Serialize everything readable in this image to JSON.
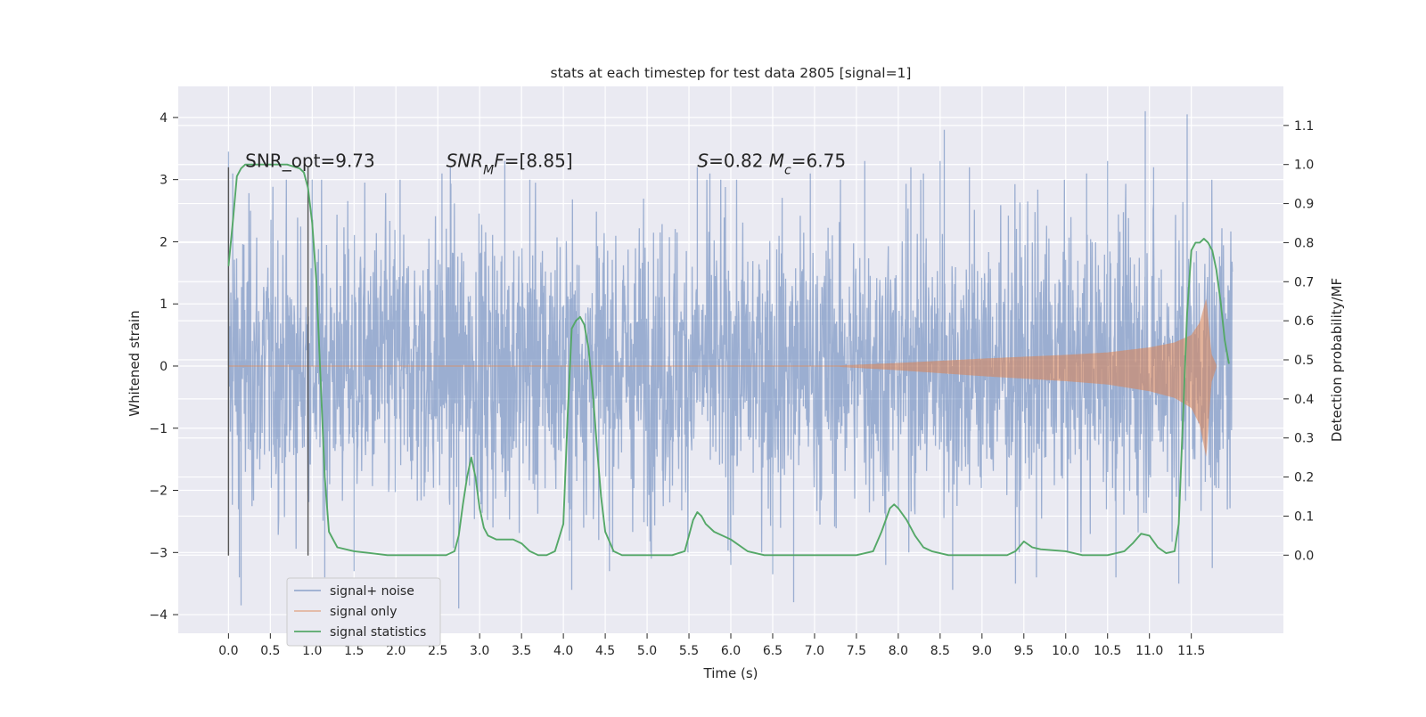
{
  "chart_data": {
    "type": "line",
    "title": "stats at each timestep for test data 2805 [signal=1]",
    "xlabel": "Time (s)",
    "ylabel_left": "Whitened strain",
    "ylabel_right": "Detection probability/MF",
    "xlim": [
      -0.6,
      12.6
    ],
    "ylim_left": [
      -4.3,
      4.5
    ],
    "ylim_right": [
      -0.2,
      1.2
    ],
    "x_ticks": [
      0.0,
      0.5,
      1.0,
      1.5,
      2.0,
      2.5,
      3.0,
      3.5,
      4.0,
      4.5,
      5.0,
      5.5,
      6.0,
      6.5,
      7.0,
      7.5,
      8.0,
      8.5,
      9.0,
      9.5,
      10.0,
      10.5,
      11.0,
      11.5
    ],
    "x_tick_labels": [
      "0.0",
      "0.5",
      "1.0",
      "1.5",
      "2.0",
      "2.5",
      "3.0",
      "3.5",
      "4.0",
      "4.5",
      "5.0",
      "5.5",
      "6.0",
      "6.5",
      "7.0",
      "7.5",
      "8.0",
      "8.5",
      "9.0",
      "9.5",
      "10.0",
      "10.5",
      "11.0",
      "11.5"
    ],
    "y_left_ticks": [
      -4,
      -3,
      -2,
      -1,
      0,
      1,
      2,
      3,
      4
    ],
    "y_left_tick_labels": [
      "−4",
      "−3",
      "−2",
      "−1",
      "0",
      "1",
      "2",
      "3",
      "4"
    ],
    "y_right_ticks": [
      0.0,
      0.1,
      0.2,
      0.3,
      0.4,
      0.5,
      0.6,
      0.7,
      0.8,
      0.9,
      1.0,
      1.1
    ],
    "y_right_tick_labels": [
      "0.0",
      "0.1",
      "0.2",
      "0.3",
      "0.4",
      "0.5",
      "0.6",
      "0.7",
      "0.8",
      "0.9",
      "1.0",
      "1.1"
    ],
    "grid": true,
    "legend_position": "lower-left",
    "series": [
      {
        "name": "signal+ noise",
        "axis": "left",
        "color": "#4c72b0",
        "opacity": 0.5,
        "x_range": [
          0.0,
          11.99
        ],
        "typical_amplitude": 1.35,
        "peaks": [
          {
            "x": 0.0,
            "y": 3.45
          },
          {
            "x": 0.05,
            "y": 3.1
          },
          {
            "x": 0.13,
            "y": -3.4
          },
          {
            "x": 0.15,
            "y": -3.85
          },
          {
            "x": 1.0,
            "y": 3.0
          },
          {
            "x": 1.15,
            "y": -3.4
          },
          {
            "x": 1.5,
            "y": -3.3
          },
          {
            "x": 2.05,
            "y": 3.0
          },
          {
            "x": 2.55,
            "y": 3.1
          },
          {
            "x": 2.65,
            "y": 3.2
          },
          {
            "x": 2.75,
            "y": -3.9
          },
          {
            "x": 3.3,
            "y": 3.3
          },
          {
            "x": 3.6,
            "y": 3.0
          },
          {
            "x": 4.1,
            "y": -3.6
          },
          {
            "x": 4.55,
            "y": -3.3
          },
          {
            "x": 5.05,
            "y": -3.1
          },
          {
            "x": 5.6,
            "y": 3.2
          },
          {
            "x": 5.75,
            "y": 3.1
          },
          {
            "x": 6.0,
            "y": -3.2
          },
          {
            "x": 6.5,
            "y": -3.35
          },
          {
            "x": 6.75,
            "y": -3.8
          },
          {
            "x": 6.95,
            "y": 3.1
          },
          {
            "x": 7.6,
            "y": 3.3
          },
          {
            "x": 7.85,
            "y": -3.2
          },
          {
            "x": 8.15,
            "y": 3.2
          },
          {
            "x": 8.3,
            "y": 3.1
          },
          {
            "x": 8.5,
            "y": 3.3
          },
          {
            "x": 8.55,
            "y": 3.8
          },
          {
            "x": 8.65,
            "y": -3.6
          },
          {
            "x": 8.85,
            "y": 3.2
          },
          {
            "x": 9.4,
            "y": -3.5
          },
          {
            "x": 9.65,
            "y": -3.4
          },
          {
            "x": 10.25,
            "y": 3.1
          },
          {
            "x": 10.5,
            "y": 3.3
          },
          {
            "x": 10.6,
            "y": -3.4
          },
          {
            "x": 10.95,
            "y": 4.1
          },
          {
            "x": 11.05,
            "y": 3.2
          },
          {
            "x": 11.35,
            "y": -3.5
          },
          {
            "x": 11.45,
            "y": 4.05
          },
          {
            "x": 11.75,
            "y": -3.25
          }
        ]
      },
      {
        "name": "signal only",
        "axis": "left",
        "color": "#dd8452",
        "opacity": 0.5,
        "chirp_start": 7.3,
        "merger_time": 11.7,
        "envelope": [
          {
            "x": 7.3,
            "y": 0.01
          },
          {
            "x": 8.0,
            "y": 0.05
          },
          {
            "x": 9.0,
            "y": 0.12
          },
          {
            "x": 10.0,
            "y": 0.18
          },
          {
            "x": 10.5,
            "y": 0.22
          },
          {
            "x": 11.0,
            "y": 0.3
          },
          {
            "x": 11.3,
            "y": 0.38
          },
          {
            "x": 11.5,
            "y": 0.5
          },
          {
            "x": 11.6,
            "y": 0.7
          },
          {
            "x": 11.68,
            "y": 1.1
          },
          {
            "x": 11.74,
            "y": 0.2
          },
          {
            "x": 11.8,
            "y": 0.02
          }
        ]
      },
      {
        "name": "signal statistics",
        "axis": "right",
        "color": "#55a868",
        "x": [
          0.0,
          0.05,
          0.1,
          0.15,
          0.2,
          0.3,
          0.5,
          0.7,
          0.85,
          0.9,
          0.95,
          1.0,
          1.05,
          1.1,
          1.15,
          1.2,
          1.3,
          1.5,
          1.7,
          1.9,
          2.1,
          2.3,
          2.5,
          2.6,
          2.7,
          2.75,
          2.8,
          2.85,
          2.9,
          2.95,
          3.0,
          3.05,
          3.1,
          3.2,
          3.4,
          3.5,
          3.6,
          3.7,
          3.8,
          3.9,
          4.0,
          4.05,
          4.1,
          4.15,
          4.2,
          4.25,
          4.3,
          4.35,
          4.4,
          4.45,
          4.5,
          4.6,
          4.7,
          5.0,
          5.3,
          5.45,
          5.5,
          5.55,
          5.6,
          5.65,
          5.7,
          5.8,
          6.0,
          6.2,
          6.4,
          6.6,
          7.0,
          7.5,
          7.7,
          7.8,
          7.9,
          7.95,
          8.0,
          8.1,
          8.2,
          8.3,
          8.4,
          8.6,
          9.0,
          9.3,
          9.4,
          9.5,
          9.6,
          9.7,
          10.0,
          10.2,
          10.5,
          10.7,
          10.8,
          10.9,
          11.0,
          11.1,
          11.2,
          11.3,
          11.35,
          11.4,
          11.45,
          11.5,
          11.55,
          11.6,
          11.65,
          11.7,
          11.75,
          11.8,
          11.85,
          11.9,
          11.95
        ],
        "y": [
          0.74,
          0.85,
          0.97,
          0.99,
          1.0,
          1.0,
          1.0,
          1.0,
          0.99,
          0.98,
          0.94,
          0.85,
          0.7,
          0.45,
          0.2,
          0.06,
          0.02,
          0.01,
          0.005,
          0.0,
          0.0,
          0.0,
          0.0,
          0.0,
          0.01,
          0.05,
          0.13,
          0.2,
          0.25,
          0.2,
          0.12,
          0.07,
          0.05,
          0.04,
          0.04,
          0.03,
          0.01,
          0.0,
          0.0,
          0.01,
          0.08,
          0.35,
          0.58,
          0.6,
          0.61,
          0.59,
          0.53,
          0.42,
          0.28,
          0.15,
          0.06,
          0.01,
          0.0,
          0.0,
          0.0,
          0.01,
          0.05,
          0.09,
          0.11,
          0.1,
          0.08,
          0.06,
          0.04,
          0.01,
          0.0,
          0.0,
          0.0,
          0.0,
          0.01,
          0.06,
          0.12,
          0.13,
          0.12,
          0.09,
          0.05,
          0.02,
          0.01,
          0.0,
          0.0,
          0.0,
          0.01,
          0.035,
          0.02,
          0.015,
          0.01,
          0.0,
          0.0,
          0.01,
          0.03,
          0.055,
          0.05,
          0.02,
          0.005,
          0.01,
          0.08,
          0.35,
          0.62,
          0.78,
          0.8,
          0.8,
          0.81,
          0.8,
          0.78,
          0.73,
          0.65,
          0.55,
          0.49
        ]
      }
    ],
    "vertical_markers": [
      {
        "x": 0.0,
        "y_range": [
          -3.05,
          3.2
        ],
        "color": "#555555"
      },
      {
        "x": 0.95,
        "y_range": [
          -3.05,
          3.2
        ],
        "color": "#555555"
      }
    ],
    "annotations": [
      {
        "x": 0.2,
        "y": 3.2,
        "text": "SNR_opt=9.73"
      },
      {
        "x": 2.6,
        "y": 3.2,
        "text": "SNR_MF=[8.85]",
        "parts": [
          {
            "text": "SNR",
            "italic": true
          },
          {
            "text": "M",
            "italic": true,
            "sub": true
          },
          {
            "text": "F",
            "italic": true
          },
          {
            "text": "=[8.85]"
          }
        ]
      },
      {
        "x": 5.6,
        "y": 3.2,
        "text": "S=0.82   Mc=6.75",
        "parts": [
          {
            "text": "S",
            "italic": true
          },
          {
            "text": "=0.82   "
          },
          {
            "text": "M",
            "italic": true
          },
          {
            "text": "c",
            "italic": true,
            "sub": true
          },
          {
            "text": "=6.75"
          }
        ]
      }
    ]
  }
}
